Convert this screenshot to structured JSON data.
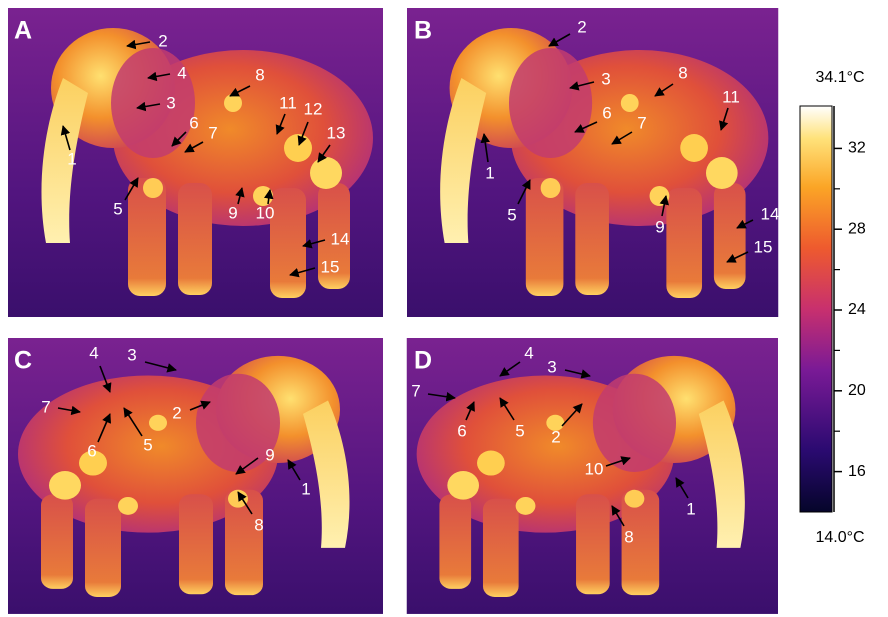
{
  "panels": [
    {
      "label": "A",
      "annotations": [
        "2",
        "4",
        "3",
        "1",
        "8",
        "11",
        "12",
        "13",
        "6",
        "7",
        "5",
        "9",
        "10",
        "14",
        "15"
      ]
    },
    {
      "label": "B",
      "annotations": [
        "2",
        "3",
        "8",
        "11",
        "6",
        "7",
        "1",
        "5",
        "9",
        "14",
        "15"
      ]
    },
    {
      "label": "C",
      "annotations": [
        "4",
        "3",
        "7",
        "6",
        "5",
        "2",
        "9",
        "1",
        "8"
      ]
    },
    {
      "label": "D",
      "annotations": [
        "4",
        "3",
        "7",
        "6",
        "5",
        "2",
        "10",
        "1",
        "8"
      ]
    }
  ],
  "colorbar": {
    "range": [
      14.0,
      34.1
    ],
    "ticks": [
      16,
      20,
      24,
      28,
      32
    ],
    "max_label": "34.1°C",
    "min_label": "14.0°C"
  }
}
